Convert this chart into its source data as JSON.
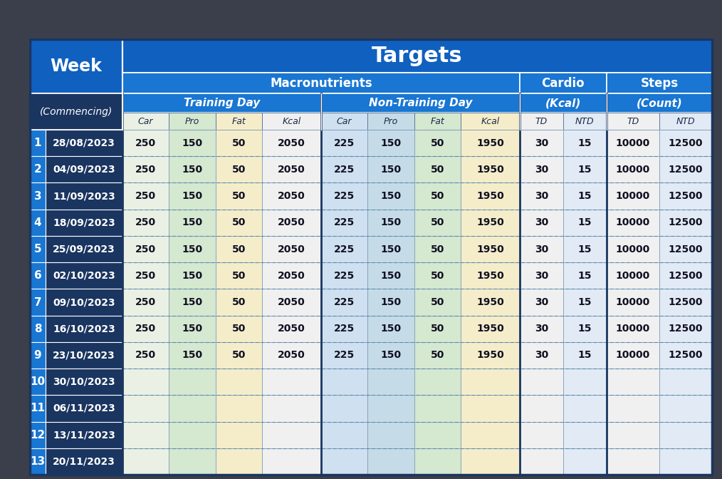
{
  "background_color": "#3a3f4b",
  "header_blue": "#1060C0",
  "header_blue_light": "#1976D2",
  "week_header_bg": "#1a3560",
  "week_num_bg": "#1976D2",
  "commencing_bg": "#1a3560",
  "col_colors": [
    "#eaf1e4",
    "#d5e8d0",
    "#f5edca",
    "#f0f0f0",
    "#cfe0f0",
    "#c5dce8",
    "#d5e8d0",
    "#f5edca",
    "#f0f0f0",
    "#e2eaf5",
    "#f0f0f0",
    "#e2eaf5"
  ],
  "header_row1": "Targets",
  "header_row2_left": "Macronutrients",
  "header_row2_mid": "Cardio",
  "header_row2_right": "Steps",
  "header_row3_left": "Training Day",
  "header_row3_mid": "Non-Training Day",
  "header_row3_mid2": "(Kcal)",
  "header_row3_right": "(Count)",
  "col_headers": [
    "Car",
    "Pro",
    "Fat",
    "Kcal",
    "Car",
    "Pro",
    "Fat",
    "Kcal",
    "TD",
    "NTD",
    "TD",
    "NTD"
  ],
  "weeks": [
    1,
    2,
    3,
    4,
    5,
    6,
    7,
    8,
    9,
    10,
    11,
    12,
    13
  ],
  "dates": [
    "28/08/2023",
    "04/09/2023",
    "11/09/2023",
    "18/09/2023",
    "25/09/2023",
    "02/10/2023",
    "09/10/2023",
    "16/10/2023",
    "23/10/2023",
    "30/10/2023",
    "06/11/2023",
    "13/11/2023",
    "20/11/2023"
  ],
  "data_rows": [
    [
      250,
      150,
      50,
      2050,
      225,
      150,
      50,
      1950,
      30,
      15,
      10000,
      12500
    ],
    [
      250,
      150,
      50,
      2050,
      225,
      150,
      50,
      1950,
      30,
      15,
      10000,
      12500
    ],
    [
      250,
      150,
      50,
      2050,
      225,
      150,
      50,
      1950,
      30,
      15,
      10000,
      12500
    ],
    [
      250,
      150,
      50,
      2050,
      225,
      150,
      50,
      1950,
      30,
      15,
      10000,
      12500
    ],
    [
      250,
      150,
      50,
      2050,
      225,
      150,
      50,
      1950,
      30,
      15,
      10000,
      12500
    ],
    [
      250,
      150,
      50,
      2050,
      225,
      150,
      50,
      1950,
      30,
      15,
      10000,
      12500
    ],
    [
      250,
      150,
      50,
      2050,
      225,
      150,
      50,
      1950,
      30,
      15,
      10000,
      12500
    ],
    [
      250,
      150,
      50,
      2050,
      225,
      150,
      50,
      1950,
      30,
      15,
      10000,
      12500
    ],
    [
      250,
      150,
      50,
      2050,
      225,
      150,
      50,
      1950,
      30,
      15,
      10000,
      12500
    ],
    [
      null,
      null,
      null,
      null,
      null,
      null,
      null,
      null,
      null,
      null,
      null,
      null
    ],
    [
      null,
      null,
      null,
      null,
      null,
      null,
      null,
      null,
      null,
      null,
      null,
      null
    ],
    [
      null,
      null,
      null,
      null,
      null,
      null,
      null,
      null,
      null,
      null,
      null,
      null
    ],
    [
      null,
      null,
      null,
      null,
      null,
      null,
      null,
      null,
      null,
      null,
      null,
      null
    ]
  ],
  "fig_w": 10.14,
  "fig_h": 6.72
}
